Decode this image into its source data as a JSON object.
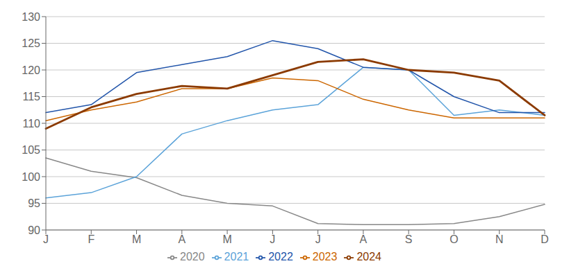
{
  "chart_data": {
    "type": "line",
    "categories": [
      "J",
      "F",
      "M",
      "A",
      "M",
      "J",
      "J",
      "A",
      "S",
      "O",
      "N",
      "D"
    ],
    "series": [
      {
        "name": "2020",
        "color": "#888888",
        "values": [
          103.5,
          101.0,
          99.8,
          96.5,
          95.0,
          94.5,
          91.2,
          91.0,
          91.0,
          91.2,
          92.5,
          94.8
        ]
      },
      {
        "name": "2021",
        "color": "#5BA3D9",
        "values": [
          96.0,
          97.0,
          100.0,
          108.0,
          110.5,
          112.5,
          113.5,
          120.5,
          120.0,
          111.5,
          112.5,
          111.5
        ]
      },
      {
        "name": "2022",
        "color": "#2255AA",
        "values": [
          112.0,
          113.5,
          119.5,
          121.0,
          122.5,
          125.5,
          124.0,
          120.5,
          120.0,
          115.0,
          112.0,
          112.0
        ]
      },
      {
        "name": "2023",
        "color": "#CC6600",
        "values": [
          110.5,
          112.5,
          114.0,
          116.5,
          116.5,
          118.5,
          118.0,
          114.5,
          112.5,
          111.0,
          111.0,
          111.0
        ]
      },
      {
        "name": "2024",
        "color": "#8B3A00",
        "values": [
          109.0,
          113.0,
          115.5,
          117.0,
          116.5,
          119.0,
          121.5,
          122.0,
          120.0,
          119.5,
          118.0,
          111.5
        ]
      }
    ],
    "ylim": [
      90,
      130
    ],
    "yticks": [
      90,
      95,
      100,
      105,
      110,
      115,
      120,
      125,
      130
    ],
    "grid": true,
    "legend": "bottom"
  }
}
